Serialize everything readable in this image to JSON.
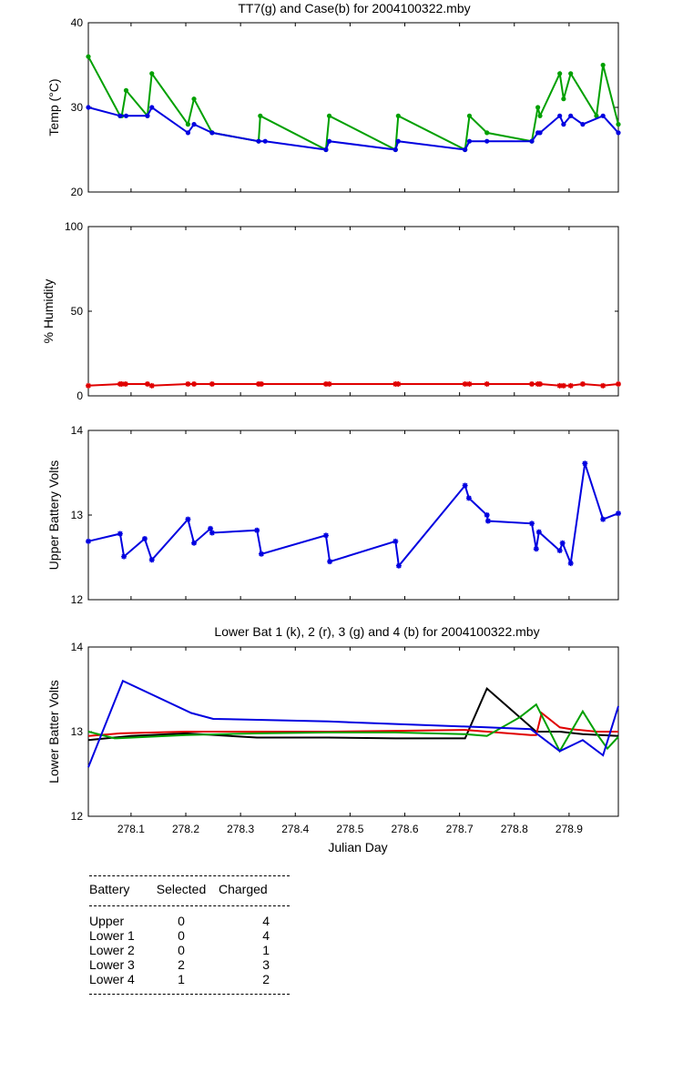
{
  "chart_data": [
    {
      "type": "line",
      "title": "TT7(g) and Case(b) for 2004100322.mby",
      "xlabel": "",
      "ylabel": "Temp  (°C)",
      "xlim": [
        278.022,
        278.99
      ],
      "ylim": [
        20,
        40
      ],
      "yticks": [
        20,
        30,
        40
      ],
      "series": [
        {
          "color": "#00a000",
          "x": [
            278.022,
            278.08,
            278.083,
            278.091,
            278.13,
            278.138,
            278.204,
            278.215,
            278.248,
            278.333,
            278.336,
            278.456,
            278.462,
            278.583,
            278.588,
            278.71,
            278.718,
            278.75,
            278.832,
            278.843,
            278.847,
            278.883,
            278.89,
            278.903,
            278.95,
            278.962,
            278.99
          ],
          "y": [
            36,
            29,
            29,
            32,
            29,
            34,
            28,
            31,
            27,
            26,
            29,
            25,
            29,
            25,
            29,
            25,
            29,
            27,
            26,
            30,
            29,
            34,
            31,
            34,
            29,
            35,
            28
          ]
        },
        {
          "color": "#0000e0",
          "x": [
            278.022,
            278.08,
            278.091,
            278.13,
            278.138,
            278.204,
            278.215,
            278.248,
            278.333,
            278.345,
            278.456,
            278.462,
            278.583,
            278.588,
            278.71,
            278.718,
            278.75,
            278.832,
            278.843,
            278.847,
            278.883,
            278.89,
            278.903,
            278.925,
            278.962,
            278.99
          ],
          "y": [
            30,
            29,
            29,
            29,
            30,
            27,
            28,
            27,
            26,
            26,
            25,
            26,
            25,
            26,
            25,
            26,
            26,
            26,
            27,
            27,
            29,
            28,
            29,
            28,
            29,
            27
          ]
        }
      ]
    },
    {
      "type": "line",
      "title": "",
      "xlabel": "",
      "ylabel": "% Humidity",
      "xlim": [
        278.022,
        278.99
      ],
      "ylim": [
        0,
        100
      ],
      "yticks": [
        0,
        50,
        100
      ],
      "series": [
        {
          "color": "#e00000",
          "x": [
            278.022,
            278.08,
            278.083,
            278.09,
            278.13,
            278.138,
            278.204,
            278.215,
            278.248,
            278.333,
            278.338,
            278.456,
            278.462,
            278.583,
            278.588,
            278.71,
            278.718,
            278.75,
            278.832,
            278.843,
            278.847,
            278.883,
            278.89,
            278.903,
            278.925,
            278.962,
            278.99
          ],
          "y": [
            6,
            7,
            7,
            7,
            7,
            6,
            7,
            7,
            7,
            7,
            7,
            7,
            7,
            7,
            7,
            7,
            7,
            7,
            7,
            7,
            7,
            6,
            6,
            6,
            7,
            6,
            7
          ]
        }
      ]
    },
    {
      "type": "line",
      "title": "",
      "xlabel": "",
      "ylabel": "Upper Battery Volts",
      "xlim": [
        278.022,
        278.99
      ],
      "ylim": [
        12,
        14
      ],
      "yticks": [
        12,
        13,
        14
      ],
      "series": [
        {
          "color": "#0000e0",
          "x": [
            278.022,
            278.08,
            278.087,
            278.125,
            278.138,
            278.204,
            278.215,
            278.245,
            278.248,
            278.33,
            278.338,
            278.456,
            278.463,
            278.583,
            278.589,
            278.71,
            278.717,
            278.75,
            278.752,
            278.832,
            278.84,
            278.845,
            278.883,
            278.888,
            278.903,
            278.929,
            278.962,
            278.99
          ],
          "y": [
            12.69,
            12.78,
            12.51,
            12.72,
            12.47,
            12.95,
            12.67,
            12.84,
            12.79,
            12.82,
            12.54,
            12.76,
            12.45,
            12.69,
            12.4,
            13.35,
            13.2,
            13.0,
            12.93,
            12.9,
            12.6,
            12.8,
            12.58,
            12.67,
            12.43,
            13.61,
            12.95,
            13.02
          ]
        }
      ]
    },
    {
      "type": "line",
      "title": "Lower Bat 1 (k), 2 (r), 3 (g) and 4 (b) for 2004100322.mby",
      "xlabel": "Julian Day",
      "ylabel": "Lower Batter Volts",
      "xlim": [
        278.022,
        278.99
      ],
      "ylim": [
        12,
        14
      ],
      "yticks": [
        12,
        13,
        14
      ],
      "xticks": [
        278.1,
        278.2,
        278.3,
        278.4,
        278.5,
        278.6,
        278.7,
        278.8,
        278.9
      ],
      "xtick_labels": [
        "278.1",
        "278.2",
        "278.3",
        "278.4",
        "278.5",
        "278.6",
        "278.7",
        "278.8",
        "278.9"
      ],
      "series": [
        {
          "color": "#000000",
          "x": [
            278.022,
            278.1,
            278.2,
            278.33,
            278.46,
            278.583,
            278.71,
            278.75,
            278.84,
            278.883,
            278.925,
            278.99
          ],
          "y": [
            12.9,
            12.95,
            12.98,
            12.93,
            12.93,
            12.92,
            12.92,
            13.51,
            13.0,
            13.0,
            12.97,
            12.95
          ]
        },
        {
          "color": "#e00000",
          "x": [
            278.022,
            278.08,
            278.2,
            278.33,
            278.46,
            278.583,
            278.71,
            278.75,
            278.83,
            278.84,
            278.85,
            278.883,
            278.903,
            278.95,
            278.99
          ],
          "y": [
            12.95,
            12.98,
            13.0,
            13.0,
            13.0,
            13.01,
            13.02,
            13.0,
            12.96,
            12.96,
            13.22,
            13.05,
            13.03,
            13.0,
            13.0
          ]
        },
        {
          "color": "#00a000",
          "x": [
            278.022,
            278.07,
            278.2,
            278.33,
            278.46,
            278.583,
            278.71,
            278.75,
            278.81,
            278.84,
            278.883,
            278.925,
            278.95,
            278.97,
            278.99
          ],
          "y": [
            13.0,
            12.92,
            12.96,
            12.98,
            12.99,
            12.99,
            12.97,
            12.95,
            13.17,
            13.32,
            12.77,
            13.24,
            12.98,
            12.8,
            12.94
          ]
        },
        {
          "color": "#0000e0",
          "x": [
            278.022,
            278.085,
            278.21,
            278.25,
            278.33,
            278.46,
            278.583,
            278.71,
            278.75,
            278.83,
            278.883,
            278.925,
            278.962,
            278.99
          ],
          "y": [
            12.58,
            13.6,
            13.22,
            13.15,
            13.14,
            13.12,
            13.09,
            13.06,
            13.05,
            13.03,
            12.77,
            12.9,
            12.72,
            13.3
          ]
        }
      ]
    }
  ],
  "table": {
    "headers": [
      "Battery",
      "Selected",
      "Charged"
    ],
    "rows": [
      {
        "battery": "Upper",
        "selected": "0",
        "charged": "4"
      },
      {
        "battery": "Lower 1",
        "selected": "0",
        "charged": "4"
      },
      {
        "battery": "Lower 2",
        "selected": "0",
        "charged": "1"
      },
      {
        "battery": "Lower 3",
        "selected": "2",
        "charged": "3"
      },
      {
        "battery": "Lower 4",
        "selected": "1",
        "charged": "2"
      }
    ]
  }
}
